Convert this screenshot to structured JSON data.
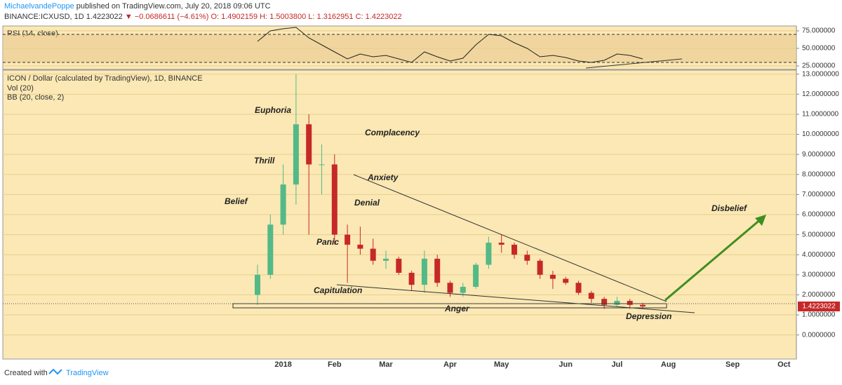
{
  "header": {
    "author": "MichaelvandePoppe",
    "published": "published on TradingView.com, July 20, 2018 09:06 UTC",
    "symbol": "BINANCE:ICXUSD, 1D",
    "last": "1.4223022",
    "change": "▼ −0.0686611 (−4.61%)",
    "open": "O: 1.4902159",
    "high": "H: 1.5003800",
    "low": "L: 1.3162951",
    "close": "C: 1.4223022"
  },
  "footer": {
    "created": "Created with",
    "brand": "TradingView"
  },
  "chart_data": [
    {
      "type": "candlestick",
      "title": "ICON / Dollar (calculated by TradingView), 1D, BINANCE",
      "indicators": [
        "Vol (20)",
        "BB (20, close, 2)"
      ],
      "categories": [
        null,
        null,
        "2018",
        null,
        null,
        null,
        "Feb",
        null,
        null,
        null,
        "Mar",
        null,
        null,
        null,
        null,
        "Apr",
        null,
        null,
        null,
        "May",
        null,
        null,
        null,
        null,
        "Jun",
        null,
        null,
        null,
        "Jul",
        null,
        null,
        null,
        "Aug",
        null,
        null,
        null,
        null,
        "Sep",
        null,
        null,
        null,
        "Oct"
      ],
      "open": [
        2.0,
        3.0,
        5.5,
        7.5,
        10.5,
        8.5,
        8.5,
        5.0,
        4.5,
        4.3,
        3.7,
        3.8,
        3.1,
        2.5,
        3.8,
        2.6,
        2.1,
        2.4,
        3.5,
        4.6,
        4.5,
        4.0,
        3.7,
        3.0,
        2.8,
        2.6,
        2.1,
        1.8,
        1.5,
        1.7,
        1.5,
        null,
        null,
        null,
        null,
        null,
        null,
        null,
        null,
        null,
        null,
        null
      ],
      "high": [
        3.5,
        6.0,
        8.5,
        13.0,
        11.0,
        9.5,
        9.0,
        5.5,
        5.4,
        4.8,
        4.2,
        3.9,
        3.2,
        4.2,
        4.0,
        2.7,
        2.6,
        3.6,
        4.9,
        5.0,
        4.6,
        4.2,
        3.8,
        3.2,
        2.9,
        2.7,
        2.2,
        1.9,
        1.9,
        1.8,
        1.6,
        null,
        null,
        null,
        null,
        null,
        null,
        null,
        null,
        null,
        null,
        null
      ],
      "low": [
        1.5,
        2.8,
        5.0,
        6.5,
        5.0,
        7.0,
        4.5,
        2.6,
        4.0,
        3.5,
        3.3,
        3.0,
        2.2,
        2.1,
        2.4,
        1.9,
        1.9,
        2.3,
        3.3,
        4.1,
        3.8,
        3.5,
        2.8,
        2.3,
        2.5,
        2.0,
        1.6,
        1.3,
        1.4,
        1.3,
        1.32,
        null,
        null,
        null,
        null,
        null,
        null,
        null,
        null,
        null,
        null,
        null
      ],
      "close": [
        3.0,
        5.5,
        7.5,
        10.5,
        8.5,
        8.5,
        5.0,
        4.5,
        4.3,
        3.7,
        3.8,
        3.1,
        2.5,
        3.8,
        2.6,
        2.1,
        2.4,
        3.5,
        4.6,
        4.5,
        4.0,
        3.7,
        3.0,
        2.8,
        2.6,
        2.1,
        1.8,
        1.5,
        1.7,
        1.5,
        1.4223022,
        null,
        null,
        null,
        null,
        null,
        null,
        null,
        null,
        null,
        null,
        null
      ],
      "up_color": "#53b987",
      "down_color": "#c62828",
      "last_price": 1.4223022,
      "ylim": [
        -1.2,
        13.2
      ],
      "yticks": [
        {
          "value": 0,
          "label": "0.0000000"
        },
        {
          "value": 1,
          "label": "1.0000000"
        },
        {
          "value": 2,
          "label": "2.0000000"
        },
        {
          "value": 3,
          "label": "3.0000000"
        },
        {
          "value": 4,
          "label": "4.0000000"
        },
        {
          "value": 5,
          "label": "5.0000000"
        },
        {
          "value": 6,
          "label": "6.0000000"
        },
        {
          "value": 7,
          "label": "7.0000000"
        },
        {
          "value": 8,
          "label": "8.0000000"
        },
        {
          "value": 9,
          "label": "9.0000000"
        },
        {
          "value": 10,
          "label": "10.0000000"
        },
        {
          "value": 11,
          "label": "11.0000000"
        },
        {
          "value": 12,
          "label": "12.0000000"
        },
        {
          "value": 13,
          "label": "13.0000000"
        }
      ],
      "grid": true,
      "annotations": [
        "Euphoria",
        "Thrill",
        "Belief",
        "Complacency",
        "Anxiety",
        "Denial",
        "Panic",
        "Capitulation",
        "Anger",
        "Depression",
        "Disbelief"
      ]
    },
    {
      "type": "line",
      "title": "RSI (14, close)",
      "values": [
        60,
        75,
        78,
        80,
        65,
        55,
        45,
        35,
        42,
        38,
        40,
        35,
        30,
        45,
        38,
        32,
        36,
        55,
        70,
        68,
        58,
        50,
        38,
        40,
        37,
        32,
        30,
        33,
        42,
        40,
        35,
        null,
        null,
        null,
        null,
        null,
        null,
        null,
        null,
        null,
        null,
        null
      ],
      "color": "#222222",
      "band": [
        30,
        70
      ],
      "ylim": [
        20,
        82
      ],
      "yticks": [
        {
          "value": 25,
          "label": "25.000000"
        },
        {
          "value": 50,
          "label": "50.000000"
        },
        {
          "value": 75,
          "label": "75.000000"
        }
      ],
      "grid": true
    }
  ]
}
